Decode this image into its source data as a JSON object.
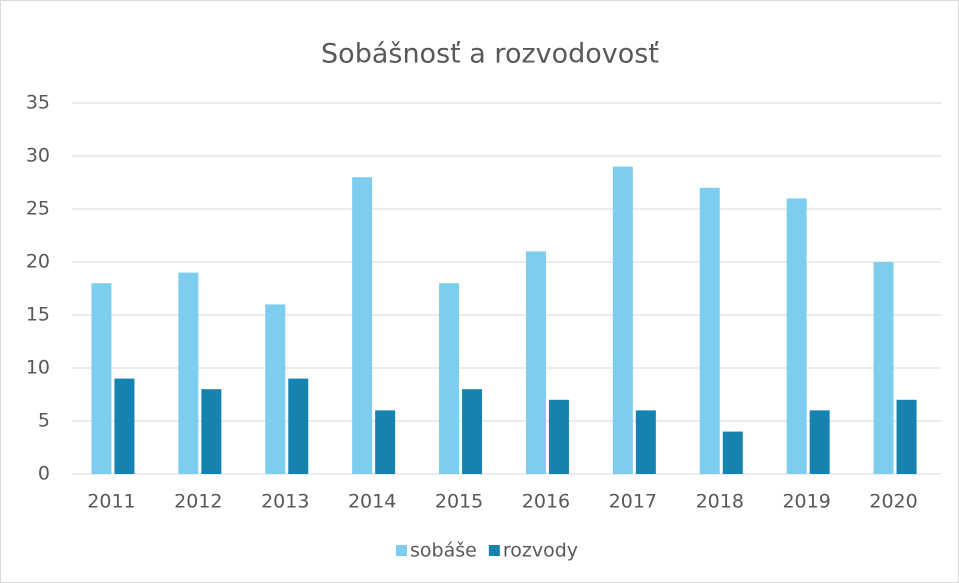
{
  "chart_data": {
    "type": "bar",
    "title": "Sobášnosť a rozvodovosť",
    "categories": [
      "2011",
      "2012",
      "2013",
      "2014",
      "2015",
      "2016",
      "2017",
      "2018",
      "2019",
      "2020"
    ],
    "series": [
      {
        "name": "sobáše",
        "color": "#7dcdef",
        "values": [
          18,
          19,
          16,
          28,
          18,
          21,
          29,
          27,
          26,
          20
        ]
      },
      {
        "name": "rozvody",
        "color": "#1582b0",
        "values": [
          9,
          8,
          9,
          6,
          8,
          7,
          6,
          4,
          6,
          7
        ]
      }
    ],
    "ylim": [
      0,
      35
    ],
    "yticks": [
      0,
      5,
      10,
      15,
      20,
      25,
      30,
      35
    ],
    "grid": true,
    "legend": "bottom"
  }
}
